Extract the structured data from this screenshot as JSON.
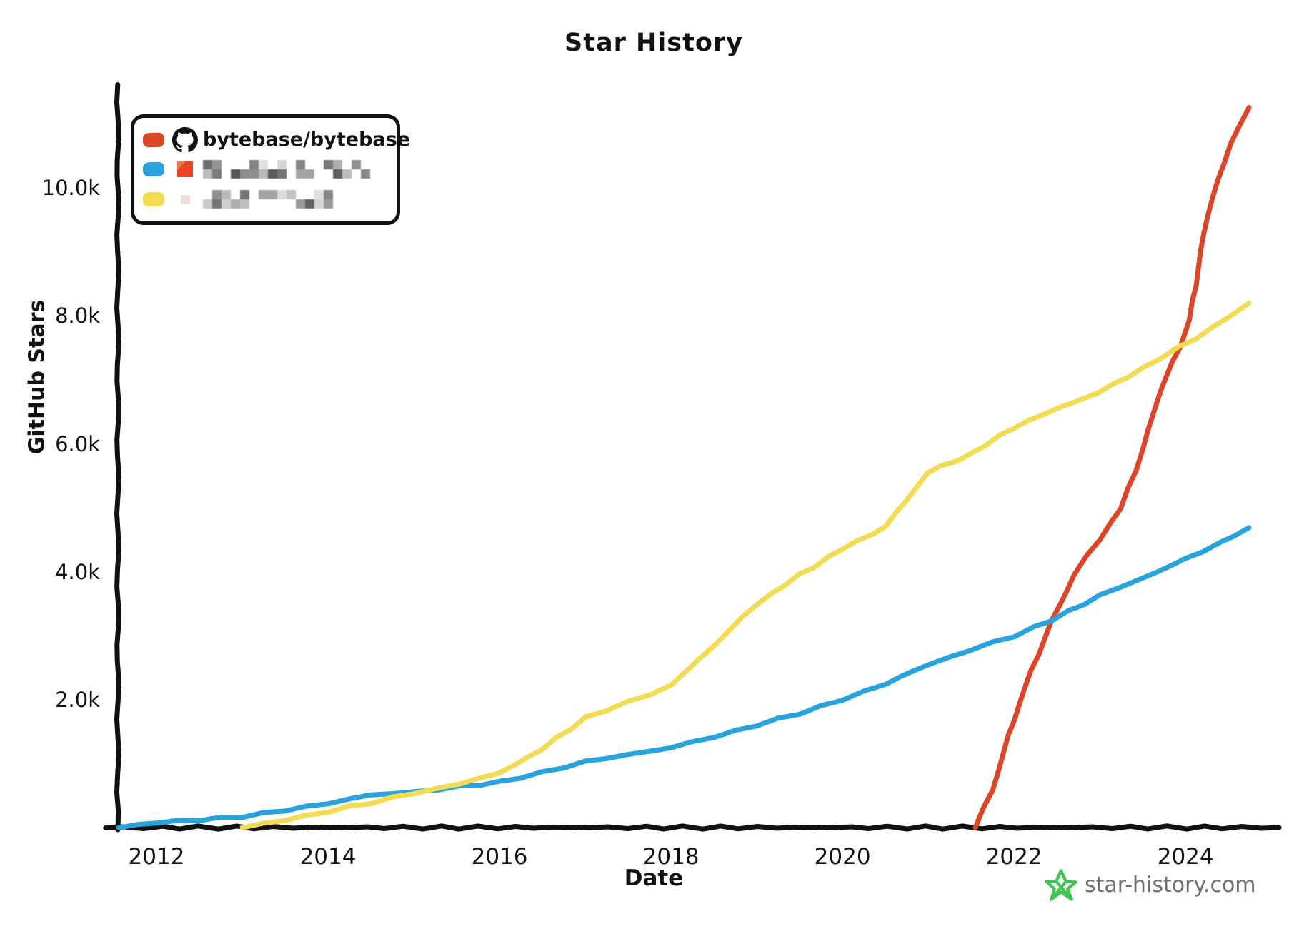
{
  "header": {
    "title": "Star History"
  },
  "watermark": {
    "text": "star-history.com",
    "star_color": "#3dc550",
    "text_color": "#707070"
  },
  "legend": {
    "items": [
      {
        "label": "bytebase/bytebase",
        "swatch": "#dd4528",
        "icon": "github-octocat",
        "redacted": false
      },
      {
        "label": "",
        "swatch": "#28a3dd",
        "icon": "avatar-orange",
        "redacted": true
      },
      {
        "label": "",
        "swatch": "#f3db52",
        "icon": "avatar-pink",
        "redacted": true
      }
    ]
  },
  "chart_data": {
    "type": "line",
    "title": "Star History",
    "xlabel": "Date",
    "ylabel": "GitHub Stars",
    "xlim": [
      2011.55,
      2025.09
    ],
    "ylim": [
      0,
      11600
    ],
    "grid": false,
    "legend_position": "top-left",
    "x_ticks": [
      {
        "v": 2012,
        "label": "2012"
      },
      {
        "v": 2014,
        "label": "2014"
      },
      {
        "v": 2016,
        "label": "2016"
      },
      {
        "v": 2018,
        "label": "2018"
      },
      {
        "v": 2020,
        "label": "2020"
      },
      {
        "v": 2022,
        "label": "2022"
      },
      {
        "v": 2024,
        "label": "2024"
      }
    ],
    "y_ticks": [
      {
        "v": 2000,
        "label": "2.0k"
      },
      {
        "v": 4000,
        "label": "4.0k"
      },
      {
        "v": 6000,
        "label": "6.0k"
      },
      {
        "v": 8000,
        "label": "8.0k"
      },
      {
        "v": 10000,
        "label": "10.0k"
      }
    ],
    "series": [
      {
        "name": "bytebase/bytebase",
        "redacted": false,
        "color": "#dd4528",
        "points": [
          [
            2021.55,
            0
          ],
          [
            2021.75,
            600
          ],
          [
            2022.0,
            1700
          ],
          [
            2022.2,
            2450
          ],
          [
            2022.45,
            3250
          ],
          [
            2022.7,
            3950
          ],
          [
            2023.0,
            4520
          ],
          [
            2023.25,
            5000
          ],
          [
            2023.5,
            5900
          ],
          [
            2023.7,
            6820
          ],
          [
            2023.93,
            7510
          ],
          [
            2024.05,
            7950
          ],
          [
            2024.25,
            9570
          ],
          [
            2024.52,
            10690
          ],
          [
            2024.74,
            11260
          ]
        ]
      },
      {
        "name": "",
        "redacted": true,
        "color": "#28a3dd",
        "points": [
          [
            2011.56,
            0
          ],
          [
            2012,
            80
          ],
          [
            2012.5,
            120
          ],
          [
            2013,
            175
          ],
          [
            2013.5,
            270
          ],
          [
            2014,
            380
          ],
          [
            2014.5,
            510
          ],
          [
            2015,
            555
          ],
          [
            2015.3,
            600
          ],
          [
            2016,
            710
          ],
          [
            2016.5,
            860
          ],
          [
            2017,
            1030
          ],
          [
            2017.5,
            1140
          ],
          [
            2018,
            1250
          ],
          [
            2018.5,
            1420
          ],
          [
            2019,
            1600
          ],
          [
            2019.5,
            1790
          ],
          [
            2020,
            2000
          ],
          [
            2020.5,
            2250
          ],
          [
            2021,
            2550
          ],
          [
            2021.5,
            2780
          ],
          [
            2022,
            3000
          ],
          [
            2022.45,
            3250
          ],
          [
            2023,
            3630
          ],
          [
            2023.5,
            3900
          ],
          [
            2024,
            4200
          ],
          [
            2024.4,
            4450
          ],
          [
            2024.74,
            4690
          ]
        ]
      },
      {
        "name": "",
        "redacted": true,
        "color": "#f3db52",
        "points": [
          [
            2013.0,
            0
          ],
          [
            2013.5,
            120
          ],
          [
            2014,
            250
          ],
          [
            2014.5,
            390
          ],
          [
            2015,
            540
          ],
          [
            2015.3,
            610
          ],
          [
            2016,
            850
          ],
          [
            2016.5,
            1230
          ],
          [
            2017,
            1715
          ],
          [
            2017.5,
            1960
          ],
          [
            2018,
            2220
          ],
          [
            2018.5,
            2850
          ],
          [
            2019,
            3500
          ],
          [
            2019.5,
            3950
          ],
          [
            2020,
            4360
          ],
          [
            2020.5,
            4700
          ],
          [
            2021,
            5560
          ],
          [
            2021.5,
            5840
          ],
          [
            2022,
            6260
          ],
          [
            2022.5,
            6550
          ],
          [
            2023,
            6810
          ],
          [
            2023.5,
            7180
          ],
          [
            2023.93,
            7510
          ],
          [
            2024.3,
            7800
          ],
          [
            2024.74,
            8200
          ]
        ]
      }
    ]
  }
}
